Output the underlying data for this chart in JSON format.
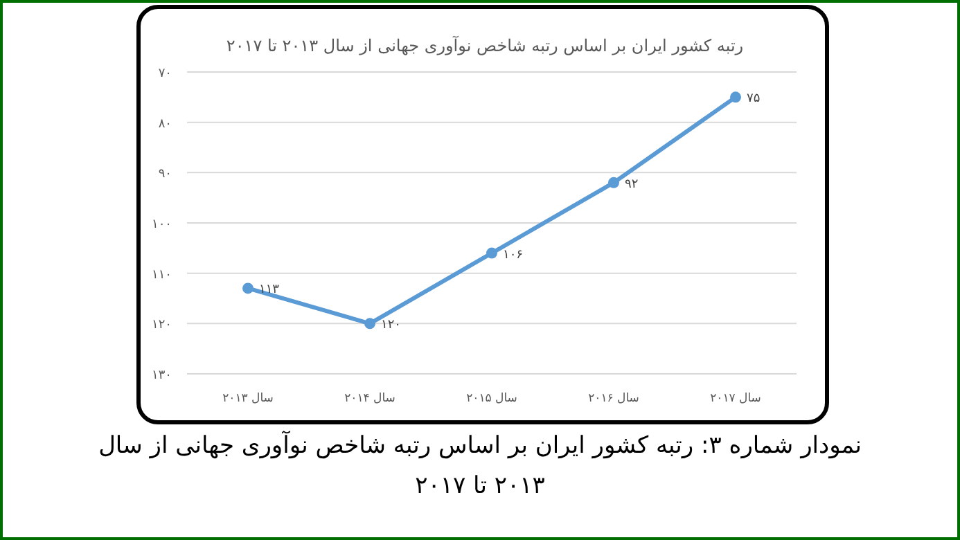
{
  "chart_data": {
    "type": "line",
    "title": "رتبه کشور ایران بر اساس رتبه شاخص نوآوری جهانی از سال ۲۰۱۳ تا ۲۰۱۷",
    "categories": [
      "سال ۲۰۱۳",
      "سال ۲۰۱۴",
      "سال ۲۰۱۵",
      "سال ۲۰۱۶",
      "سال ۲۰۱۷"
    ],
    "values": [
      113,
      120,
      106,
      92,
      75
    ],
    "value_labels": [
      "۱۱۳",
      "۱۲۰",
      "۱۰۶",
      "۹۲",
      "۷۵"
    ],
    "color": "#5b9bd5",
    "marker": "circle",
    "grid": "y",
    "ylim": [
      130,
      70
    ],
    "yticks": [
      {
        "value": 70,
        "label": "۷۰"
      },
      {
        "value": 80,
        "label": "۸۰"
      },
      {
        "value": 90,
        "label": "۹۰"
      },
      {
        "value": 100,
        "label": "۱۰۰"
      },
      {
        "value": 110,
        "label": "۱۱۰"
      },
      {
        "value": 120,
        "label": "۱۲۰"
      },
      {
        "value": 130,
        "label": "۱۳۰"
      }
    ],
    "annotations": [
      "نمودار شماره ۳: رتبه کشور ایران بر اساس رتبه شاخص نوآوری جهانی از سال ۲۰۱۳ تا ۲۰۱۷"
    ]
  }
}
